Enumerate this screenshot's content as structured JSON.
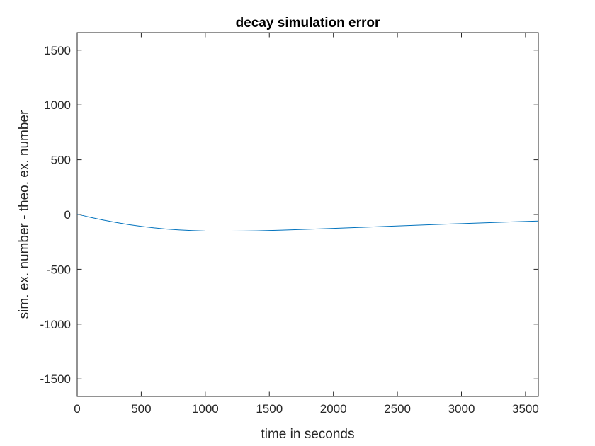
{
  "chart_data": {
    "type": "line",
    "title": "decay simulation error",
    "xlabel": "time in seconds",
    "ylabel": "sim. ex. number - theo. ex. number",
    "xlim": [
      0,
      3600
    ],
    "ylim": [
      -1660,
      1660
    ],
    "xticks": [
      0,
      500,
      1000,
      1500,
      2000,
      2500,
      3000,
      3500
    ],
    "yticks": [
      -1500,
      -1000,
      -500,
      0,
      500,
      1000,
      1500
    ],
    "grid": false,
    "legend": "none",
    "series": [
      {
        "color": "#0072BD",
        "x": [
          0,
          25,
          50,
          100,
          200,
          300,
          400,
          500,
          600,
          700,
          800,
          900,
          1000,
          1100,
          1200,
          1300,
          1400,
          1500,
          1600,
          1700,
          1800,
          1900,
          2000,
          2200,
          2400,
          2600,
          2800,
          3000,
          3200,
          3400,
          3600
        ],
        "y": [
          0,
          -4,
          -11,
          -25,
          -50,
          -72,
          -92,
          -108,
          -122,
          -133,
          -141,
          -147,
          -151,
          -152,
          -152,
          -151,
          -149,
          -146,
          -143,
          -139,
          -135,
          -131,
          -127,
          -118,
          -109,
          -100,
          -91,
          -83,
          -75,
          -67,
          -60
        ]
      }
    ]
  }
}
